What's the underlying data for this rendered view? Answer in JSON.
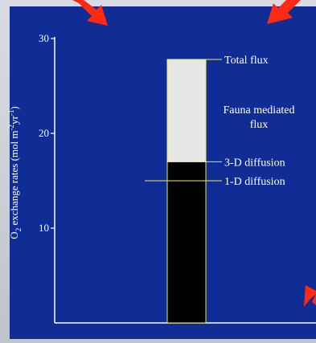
{
  "colors": {
    "background": "#0f2d95",
    "axis": "#ffffff",
    "bar_lower": "#000000",
    "bar_upper": "#e6e6e6",
    "bar_outline": "#f4e94a",
    "text": "#ffffff",
    "arrow": "#ff2a12"
  },
  "chart_data": {
    "type": "bar",
    "title": "",
    "ylabel": "O2 exchange rates (mol m-2yr-1)",
    "ylabel_parts": {
      "pre": "O",
      "sub": "2",
      "mid": " exchange rates (mol m",
      "sup1": "-2",
      "mid2": "yr",
      "sup2": "-1",
      "post": ")"
    },
    "ylim": [
      0,
      30
    ],
    "yticks": [
      "10",
      "20",
      "30"
    ],
    "ytick_values": [
      10,
      20,
      30
    ],
    "bar": {
      "segments": [
        {
          "name": "diffusion",
          "from": 0,
          "to": 17.0
        },
        {
          "name": "fauna",
          "from": 17.0,
          "to": 27.8
        }
      ]
    },
    "annotations": [
      {
        "key": "total",
        "value": 27.8,
        "lines": [
          "Total flux"
        ]
      },
      {
        "key": "fauna",
        "value": 21.0,
        "lines": [
          "Fauna mediated",
          "flux"
        ]
      },
      {
        "key": "three_d",
        "value": 17.0,
        "lines": [
          "3-D diffusion"
        ]
      },
      {
        "key": "one_d",
        "value": 15.0,
        "lines": [
          "1-D diffusion"
        ]
      }
    ],
    "grid": false,
    "legend": "none"
  },
  "decorations": [
    {
      "name": "arrow-top-left-icon",
      "icon": "red-arrow"
    },
    {
      "name": "arrow-top-right-icon",
      "icon": "red-arrow"
    },
    {
      "name": "arrow-bottom-right-icon",
      "icon": "red-arrow"
    }
  ]
}
